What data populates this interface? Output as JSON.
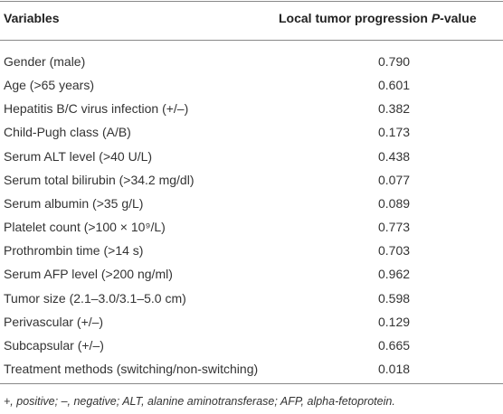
{
  "table": {
    "header": [
      "Variables",
      [
        "Local tumor progression ",
        "P",
        "-value"
      ]
    ],
    "rows": [
      [
        "Gender (male)",
        "0.790"
      ],
      [
        "Age (>65 years)",
        "0.601"
      ],
      [
        "Hepatitis B/C virus infection (+/–)",
        "0.382"
      ],
      [
        "Child-Pugh class (A/B)",
        "0.173"
      ],
      [
        "Serum ALT level (>40 U/L)",
        "0.438"
      ],
      [
        "Serum total bilirubin (>34.2 mg/dl)",
        "0.077"
      ],
      [
        "Serum albumin (>35 g/L)",
        "0.089"
      ],
      [
        "Platelet count (>100 × 10⁹/L)",
        "0.773"
      ],
      [
        "Prothrombin time (>14 s)",
        "0.703"
      ],
      [
        "Serum AFP level (>200 ng/ml)",
        "0.962"
      ],
      [
        "Tumor size (2.1–3.0/3.1–5.0 cm)",
        "0.598"
      ],
      [
        "Perivascular (+/–)",
        "0.129"
      ],
      [
        "Subcapsular (+/–)",
        "0.665"
      ],
      [
        "Treatment methods (switching/non-switching)",
        "0.018"
      ]
    ],
    "footnote": "+, positive; –, negative; ALT, alanine aminotransferase; AFP, alpha-fetoprotein."
  }
}
